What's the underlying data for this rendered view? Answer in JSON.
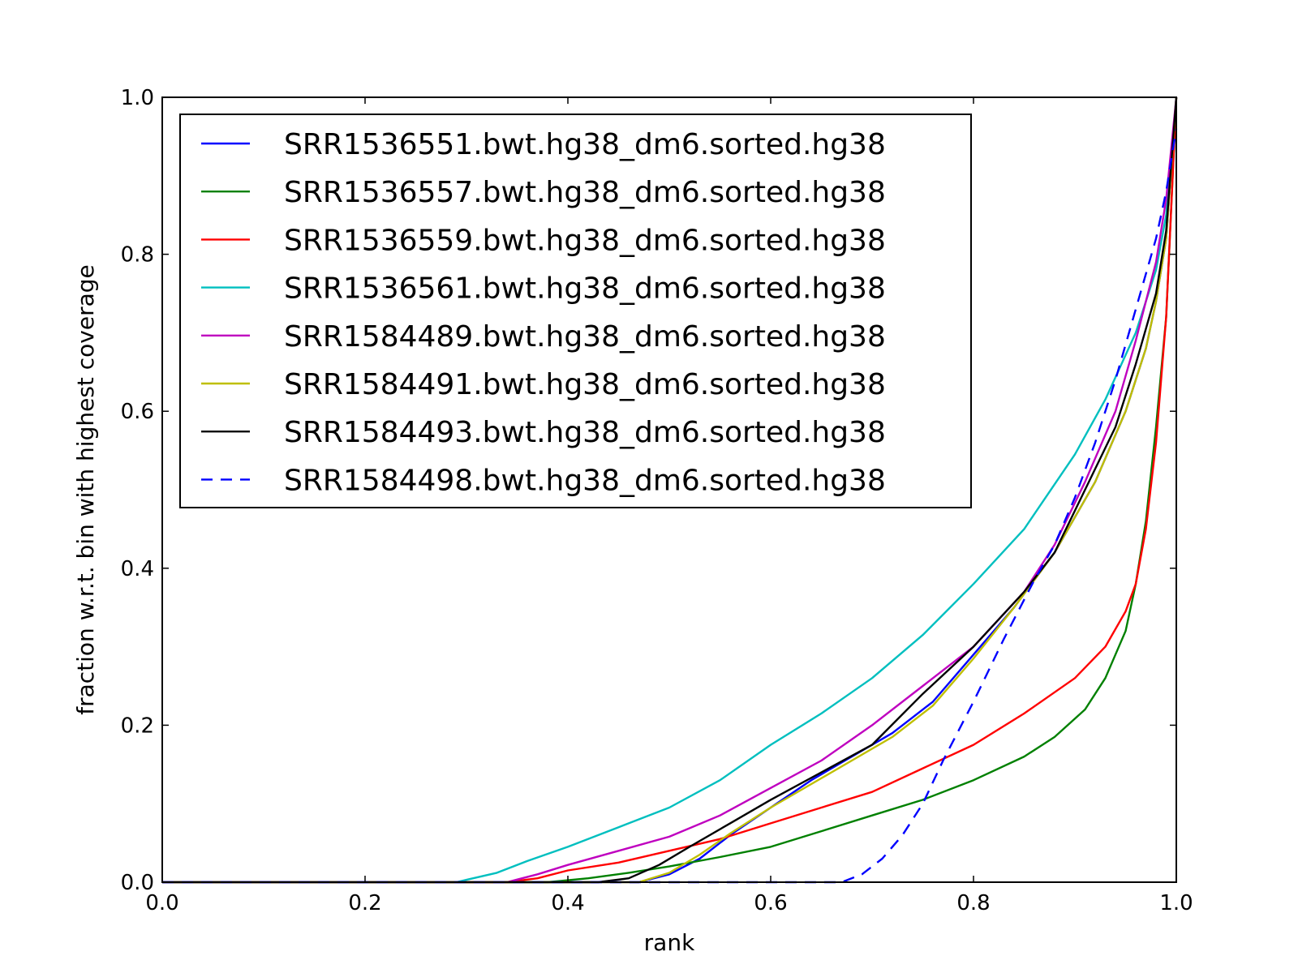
{
  "chart_data": {
    "type": "line",
    "title": "",
    "xlabel": "rank",
    "ylabel": "fraction w.r.t. bin with highest coverage",
    "xlim": [
      0.0,
      1.0
    ],
    "ylim": [
      0.0,
      1.0
    ],
    "x_ticks": [
      "0.0",
      "0.2",
      "0.4",
      "0.6",
      "0.8",
      "1.0"
    ],
    "y_ticks": [
      "0.0",
      "0.2",
      "0.4",
      "0.6",
      "0.8",
      "1.0"
    ],
    "grid": false,
    "legend_position": "upper-left",
    "series": [
      {
        "name": "SRR1536551.bwt.hg38_dm6.sorted.hg38",
        "color": "#0000ff",
        "dash": "solid",
        "points": [
          [
            0,
            0
          ],
          [
            0.47,
            0
          ],
          [
            0.5,
            0.01
          ],
          [
            0.53,
            0.03
          ],
          [
            0.56,
            0.06
          ],
          [
            0.6,
            0.095
          ],
          [
            0.64,
            0.13
          ],
          [
            0.68,
            0.16
          ],
          [
            0.72,
            0.19
          ],
          [
            0.76,
            0.23
          ],
          [
            0.8,
            0.29
          ],
          [
            0.84,
            0.35
          ],
          [
            0.88,
            0.42
          ],
          [
            0.92,
            0.51
          ],
          [
            0.95,
            0.6
          ],
          [
            0.97,
            0.68
          ],
          [
            0.98,
            0.74
          ],
          [
            0.99,
            0.82
          ],
          [
            1.0,
            1.0
          ]
        ]
      },
      {
        "name": "SRR1536557.bwt.hg38_dm6.sorted.hg38",
        "color": "#008000",
        "dash": "solid",
        "points": [
          [
            0,
            0
          ],
          [
            0.38,
            0
          ],
          [
            0.42,
            0.005
          ],
          [
            0.46,
            0.012
          ],
          [
            0.5,
            0.02
          ],
          [
            0.55,
            0.032
          ],
          [
            0.6,
            0.045
          ],
          [
            0.65,
            0.065
          ],
          [
            0.7,
            0.085
          ],
          [
            0.75,
            0.105
          ],
          [
            0.8,
            0.13
          ],
          [
            0.85,
            0.16
          ],
          [
            0.88,
            0.185
          ],
          [
            0.91,
            0.22
          ],
          [
            0.93,
            0.26
          ],
          [
            0.95,
            0.32
          ],
          [
            0.96,
            0.38
          ],
          [
            0.97,
            0.46
          ],
          [
            0.98,
            0.58
          ],
          [
            0.99,
            0.72
          ],
          [
            1.0,
            1.0
          ]
        ]
      },
      {
        "name": "SRR1536559.bwt.hg38_dm6.sorted.hg38",
        "color": "#ff0000",
        "dash": "solid",
        "points": [
          [
            0,
            0
          ],
          [
            0.34,
            0
          ],
          [
            0.37,
            0.005
          ],
          [
            0.4,
            0.015
          ],
          [
            0.45,
            0.025
          ],
          [
            0.5,
            0.04
          ],
          [
            0.55,
            0.055
          ],
          [
            0.6,
            0.075
          ],
          [
            0.65,
            0.095
          ],
          [
            0.7,
            0.115
          ],
          [
            0.75,
            0.145
          ],
          [
            0.8,
            0.175
          ],
          [
            0.85,
            0.215
          ],
          [
            0.9,
            0.26
          ],
          [
            0.93,
            0.3
          ],
          [
            0.95,
            0.345
          ],
          [
            0.96,
            0.38
          ],
          [
            0.97,
            0.45
          ],
          [
            0.98,
            0.56
          ],
          [
            0.99,
            0.72
          ],
          [
            1.0,
            1.0
          ]
        ]
      },
      {
        "name": "SRR1536561.bwt.hg38_dm6.sorted.hg38",
        "color": "#00bfbf",
        "dash": "solid",
        "points": [
          [
            0,
            0
          ],
          [
            0.29,
            0
          ],
          [
            0.3,
            0.003
          ],
          [
            0.33,
            0.012
          ],
          [
            0.36,
            0.027
          ],
          [
            0.4,
            0.045
          ],
          [
            0.45,
            0.07
          ],
          [
            0.5,
            0.095
          ],
          [
            0.55,
            0.13
          ],
          [
            0.6,
            0.175
          ],
          [
            0.65,
            0.215
          ],
          [
            0.7,
            0.26
          ],
          [
            0.75,
            0.315
          ],
          [
            0.8,
            0.38
          ],
          [
            0.85,
            0.45
          ],
          [
            0.9,
            0.545
          ],
          [
            0.93,
            0.615
          ],
          [
            0.96,
            0.7
          ],
          [
            0.98,
            0.78
          ],
          [
            0.99,
            0.85
          ],
          [
            1.0,
            1.0
          ]
        ]
      },
      {
        "name": "SRR1584489.bwt.hg38_dm6.sorted.hg38",
        "color": "#bf00bf",
        "dash": "solid",
        "points": [
          [
            0,
            0
          ],
          [
            0.34,
            0
          ],
          [
            0.37,
            0.01
          ],
          [
            0.4,
            0.022
          ],
          [
            0.45,
            0.04
          ],
          [
            0.5,
            0.058
          ],
          [
            0.55,
            0.085
          ],
          [
            0.6,
            0.12
          ],
          [
            0.65,
            0.155
          ],
          [
            0.7,
            0.2
          ],
          [
            0.75,
            0.25
          ],
          [
            0.8,
            0.3
          ],
          [
            0.85,
            0.37
          ],
          [
            0.88,
            0.43
          ],
          [
            0.91,
            0.51
          ],
          [
            0.94,
            0.6
          ],
          [
            0.96,
            0.69
          ],
          [
            0.98,
            0.79
          ],
          [
            0.99,
            0.87
          ],
          [
            1.0,
            1.0
          ]
        ]
      },
      {
        "name": "SRR1584491.bwt.hg38_dm6.sorted.hg38",
        "color": "#bfbf00",
        "dash": "solid",
        "points": [
          [
            0,
            0
          ],
          [
            0.47,
            0
          ],
          [
            0.5,
            0.012
          ],
          [
            0.53,
            0.035
          ],
          [
            0.56,
            0.062
          ],
          [
            0.6,
            0.095
          ],
          [
            0.64,
            0.125
          ],
          [
            0.68,
            0.155
          ],
          [
            0.72,
            0.185
          ],
          [
            0.76,
            0.225
          ],
          [
            0.8,
            0.285
          ],
          [
            0.84,
            0.35
          ],
          [
            0.88,
            0.42
          ],
          [
            0.92,
            0.51
          ],
          [
            0.95,
            0.6
          ],
          [
            0.97,
            0.68
          ],
          [
            0.98,
            0.74
          ],
          [
            0.99,
            0.82
          ],
          [
            1.0,
            1.0
          ]
        ]
      },
      {
        "name": "SRR1584493.bwt.hg38_dm6.sorted.hg38",
        "color": "#000000",
        "dash": "solid",
        "points": [
          [
            0,
            0
          ],
          [
            0.43,
            0
          ],
          [
            0.46,
            0.005
          ],
          [
            0.49,
            0.022
          ],
          [
            0.52,
            0.045
          ],
          [
            0.56,
            0.075
          ],
          [
            0.6,
            0.105
          ],
          [
            0.65,
            0.14
          ],
          [
            0.7,
            0.175
          ],
          [
            0.75,
            0.24
          ],
          [
            0.8,
            0.3
          ],
          [
            0.85,
            0.37
          ],
          [
            0.88,
            0.42
          ],
          [
            0.91,
            0.5
          ],
          [
            0.94,
            0.58
          ],
          [
            0.96,
            0.66
          ],
          [
            0.98,
            0.75
          ],
          [
            0.99,
            0.83
          ],
          [
            1.0,
            1.0
          ]
        ]
      },
      {
        "name": "SRR1584498.bwt.hg38_dm6.sorted.hg38",
        "color": "#0000ff",
        "dash": "dashed",
        "points": [
          [
            0,
            0
          ],
          [
            0.67,
            0
          ],
          [
            0.69,
            0.01
          ],
          [
            0.71,
            0.03
          ],
          [
            0.73,
            0.06
          ],
          [
            0.75,
            0.1
          ],
          [
            0.77,
            0.155
          ],
          [
            0.8,
            0.23
          ],
          [
            0.83,
            0.31
          ],
          [
            0.86,
            0.385
          ],
          [
            0.88,
            0.43
          ],
          [
            0.9,
            0.49
          ],
          [
            0.92,
            0.56
          ],
          [
            0.94,
            0.64
          ],
          [
            0.96,
            0.73
          ],
          [
            0.98,
            0.82
          ],
          [
            0.99,
            0.88
          ],
          [
            1.0,
            0.96
          ]
        ]
      }
    ]
  }
}
